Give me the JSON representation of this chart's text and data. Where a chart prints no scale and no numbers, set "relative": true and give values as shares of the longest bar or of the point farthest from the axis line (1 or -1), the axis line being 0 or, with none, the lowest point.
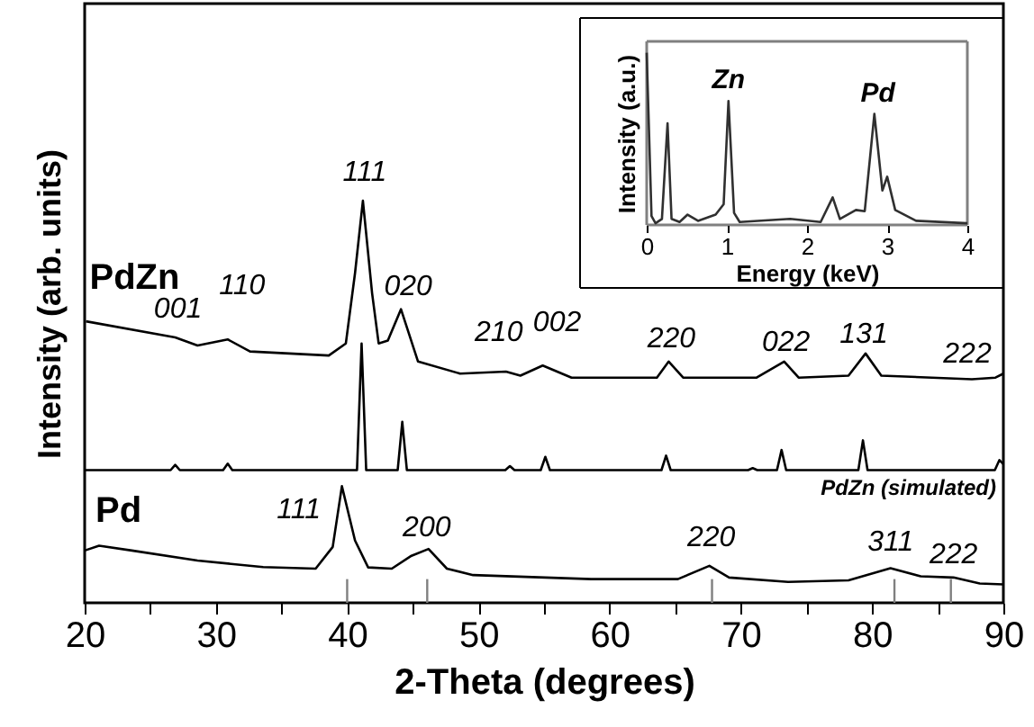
{
  "chart_data": [
    {
      "type": "line",
      "relative": true,
      "xlabel": "2-Theta (degrees)",
      "ylabel": "Intensity (arb. units)",
      "xlim": [
        20,
        90
      ],
      "xticks": [
        20,
        {
          "value": 25,
          "label": null
        },
        30,
        {
          "value": 35,
          "label": null
        },
        40,
        {
          "value": 45,
          "label": null
        },
        50,
        {
          "value": 55,
          "label": null
        },
        60,
        {
          "value": 65,
          "label": null
        },
        70,
        {
          "value": 75,
          "label": null
        },
        80,
        {
          "value": 85,
          "label": null
        },
        90
      ],
      "tick_labels": "x",
      "grid": false,
      "series": [
        {
          "name": "PdZn",
          "color": "#000000",
          "x": [
            20.1,
            26.9,
            28.6,
            30.9,
            32.6,
            38.6,
            39.9,
            40.6,
            41.2,
            41.9,
            42.4,
            43.1,
            44.1,
            45.4,
            48.6,
            52.1,
            53.2,
            54.9,
            57.1,
            63.6,
            64.5,
            65.6,
            71.2,
            73.3,
            74.4,
            78.2,
            79.5,
            80.7,
            87.6,
            89.4,
            90
          ],
          "values": [
            0.7,
            0.66,
            0.64,
            0.655,
            0.625,
            0.615,
            0.645,
            0.82,
            1.0,
            0.77,
            0.645,
            0.652,
            0.73,
            0.6,
            0.57,
            0.575,
            0.565,
            0.59,
            0.56,
            0.56,
            0.6,
            0.56,
            0.56,
            0.6,
            0.56,
            0.565,
            0.62,
            0.565,
            0.556,
            0.56,
            0.57
          ]
        },
        {
          "name": "PdZn (simulated)",
          "color": "#000000",
          "x": [
            20,
            26.55,
            26.9,
            27.25,
            30.55,
            30.9,
            31.25,
            40.75,
            41.1,
            41.45,
            43.85,
            44.2,
            44.55,
            52.05,
            52.4,
            52.75,
            54.75,
            55.1,
            55.45,
            63.95,
            64.3,
            64.65,
            70.55,
            70.9,
            71.25,
            72.75,
            73.1,
            73.45,
            78.95,
            79.3,
            79.65,
            89.35,
            89.7,
            90
          ],
          "values": [
            0.33,
            0.33,
            0.343,
            0.33,
            0.33,
            0.346,
            0.33,
            0.33,
            0.645,
            0.33,
            0.33,
            0.45,
            0.33,
            0.33,
            0.34,
            0.33,
            0.33,
            0.363,
            0.33,
            0.33,
            0.366,
            0.33,
            0.33,
            0.335,
            0.33,
            0.33,
            0.38,
            0.33,
            0.33,
            0.404,
            0.33,
            0.33,
            0.355,
            0.345
          ]
        },
        {
          "name": "Pd",
          "color": "#000000",
          "x": [
            20.0,
            21.1,
            23.6,
            28.6,
            33.6,
            37.6,
            38.9,
            39.6,
            40.6,
            41.6,
            43.4,
            44.9,
            46.2,
            47.6,
            49.6,
            58.6,
            65.2,
            67.6,
            69.1,
            73.6,
            78.2,
            81.4,
            83.7,
            86.2,
            88.2,
            90
          ],
          "values": [
            0.13,
            0.142,
            0.13,
            0.105,
            0.089,
            0.085,
            0.139,
            0.29,
            0.155,
            0.088,
            0.085,
            0.117,
            0.134,
            0.085,
            0.069,
            0.059,
            0.059,
            0.092,
            0.063,
            0.052,
            0.056,
            0.086,
            0.066,
            0.063,
            0.048,
            0.046
          ]
        },
        {
          "type": "bar",
          "color": "#808080",
          "x": [
            40.0,
            46.1,
            67.8,
            81.7,
            86.0
          ],
          "values": [
            0.059,
            0.059,
            0.059,
            0.059,
            0.059
          ]
        }
      ],
      "annotations": [
        {
          "text": "001",
          "x": 26.9,
          "y": 0.66
        },
        {
          "text": "110",
          "x": 30.9,
          "y": 0.655
        },
        {
          "text": "111",
          "x": 41.2,
          "y": 1.0
        },
        {
          "text": "020",
          "x": 44.1,
          "y": 0.73
        },
        {
          "text": "210",
          "x": 52.1,
          "y": 0.575
        },
        {
          "text": "002",
          "x": 54.9,
          "y": 0.59
        },
        {
          "text": "220",
          "x": 64.5,
          "y": 0.6
        },
        {
          "text": "022",
          "x": 73.3,
          "y": 0.6
        },
        {
          "text": "131",
          "x": 79.5,
          "y": 0.62
        },
        {
          "text": "222",
          "x": 90,
          "y": 0.57
        },
        {
          "text": "111",
          "x": 39.6,
          "y": 0.29
        },
        {
          "text": "200",
          "x": 46.2,
          "y": 0.134
        },
        {
          "text": "220",
          "x": 67.6,
          "y": 0.092
        },
        {
          "text": "311",
          "x": 81.4,
          "y": 0.086
        },
        {
          "text": "222",
          "x": 86.2,
          "y": 0.063
        }
      ]
    },
    {
      "type": "line",
      "relative": true,
      "xlabel": "Energy (keV)",
      "ylabel": "Intensity (a.u.)",
      "xlim": [
        0,
        4
      ],
      "xticks": [
        0,
        1,
        2,
        3,
        4
      ],
      "tick_labels": "x",
      "grid": false,
      "series": [
        {
          "color": "#303030",
          "x": [
            0,
            0.06,
            0.11,
            0.19,
            0.26,
            0.31,
            0.41,
            0.51,
            0.64,
            0.86,
            0.96,
            1.02,
            1.09,
            1.16,
            1.79,
            2.17,
            2.32,
            2.41,
            2.61,
            2.72,
            2.84,
            2.94,
            3.0,
            3.1,
            3.36,
            4.0
          ],
          "values": [
            1.0,
            0.052,
            0.01,
            0.035,
            0.59,
            0.035,
            0.017,
            0.06,
            0.024,
            0.06,
            0.12,
            0.72,
            0.07,
            0.017,
            0.035,
            0.017,
            0.16,
            0.035,
            0.087,
            0.08,
            0.645,
            0.2,
            0.28,
            0.087,
            0.024,
            0.01
          ]
        }
      ],
      "annotations": [
        {
          "text": "Zn",
          "x": 1.02,
          "y": 0.72
        },
        {
          "text": "Pd",
          "x": 2.84,
          "y": 0.645
        }
      ]
    }
  ]
}
